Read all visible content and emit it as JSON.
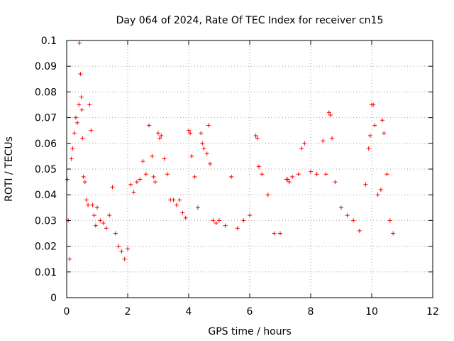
{
  "chart_data": {
    "type": "scatter",
    "title": "Day 064 of 2024, Rate Of TEC Index for receiver cn15",
    "xlabel": "GPS time / hours",
    "ylabel": "ROTI / TECUs",
    "xlim": [
      0,
      12
    ],
    "ylim": [
      0,
      0.1
    ],
    "x_ticks": [
      "0",
      "2",
      "4",
      "6",
      "8",
      "10",
      "12"
    ],
    "y_ticks": [
      "0",
      "0.01",
      "0.02",
      "0.03",
      "0.04",
      "0.05",
      "0.06",
      "0.07",
      "0.08",
      "0.09",
      "0.1"
    ],
    "grid": true,
    "marker": "+",
    "color": "#ff0000",
    "series": [
      {
        "name": "ROTI",
        "x": [
          0.02,
          0.05,
          0.1,
          0.15,
          0.2,
          0.25,
          0.3,
          0.35,
          0.4,
          0.42,
          0.45,
          0.48,
          0.5,
          0.52,
          0.55,
          0.6,
          0.65,
          0.7,
          0.75,
          0.8,
          0.85,
          0.9,
          0.95,
          1.0,
          1.1,
          1.2,
          1.3,
          1.4,
          1.5,
          1.6,
          1.7,
          1.8,
          1.9,
          2.0,
          2.1,
          2.2,
          2.3,
          2.4,
          2.5,
          2.6,
          2.7,
          2.8,
          2.85,
          2.9,
          3.0,
          3.05,
          3.1,
          3.2,
          3.3,
          3.4,
          3.5,
          3.6,
          3.7,
          3.8,
          3.9,
          4.0,
          4.05,
          4.1,
          4.2,
          4.3,
          4.4,
          4.45,
          4.5,
          4.6,
          4.65,
          4.7,
          4.8,
          4.9,
          5.0,
          5.2,
          5.4,
          5.6,
          5.8,
          6.0,
          6.2,
          6.25,
          6.3,
          6.4,
          6.6,
          6.8,
          7.0,
          7.2,
          7.25,
          7.3,
          7.4,
          7.6,
          7.7,
          7.8,
          8.0,
          8.2,
          8.4,
          8.5,
          8.6,
          8.65,
          8.7,
          8.8,
          9.0,
          9.2,
          9.4,
          9.6,
          9.8,
          9.9,
          9.95,
          10.0,
          10.05,
          10.1,
          10.2,
          10.3,
          10.35,
          10.4,
          10.5,
          10.6,
          10.7
        ],
        "y": [
          0.046,
          0.03,
          0.015,
          0.054,
          0.058,
          0.064,
          0.07,
          0.068,
          0.075,
          0.099,
          0.087,
          0.078,
          0.073,
          0.062,
          0.047,
          0.045,
          0.038,
          0.036,
          0.075,
          0.065,
          0.036,
          0.032,
          0.028,
          0.035,
          0.03,
          0.029,
          0.027,
          0.032,
          0.043,
          0.025,
          0.02,
          0.018,
          0.015,
          0.019,
          0.044,
          0.041,
          0.045,
          0.046,
          0.053,
          0.048,
          0.067,
          0.055,
          0.047,
          0.045,
          0.064,
          0.062,
          0.063,
          0.054,
          0.048,
          0.038,
          0.038,
          0.036,
          0.038,
          0.033,
          0.031,
          0.065,
          0.064,
          0.055,
          0.047,
          0.035,
          0.064,
          0.06,
          0.058,
          0.056,
          0.067,
          0.052,
          0.03,
          0.029,
          0.03,
          0.028,
          0.047,
          0.027,
          0.03,
          0.032,
          0.063,
          0.062,
          0.051,
          0.048,
          0.04,
          0.025,
          0.025,
          0.046,
          0.046,
          0.045,
          0.047,
          0.048,
          0.058,
          0.06,
          0.049,
          0.048,
          0.061,
          0.048,
          0.072,
          0.071,
          0.062,
          0.045,
          0.035,
          0.032,
          0.03,
          0.026,
          0.044,
          0.058,
          0.063,
          0.075,
          0.075,
          0.067,
          0.04,
          0.042,
          0.069,
          0.064,
          0.048,
          0.03,
          0.025
        ]
      }
    ]
  }
}
